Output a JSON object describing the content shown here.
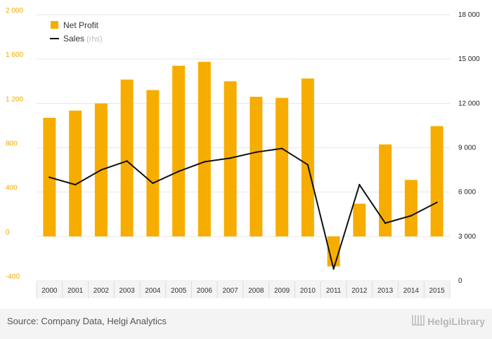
{
  "chart_data": {
    "type": "bar",
    "categories": [
      "2000",
      "2001",
      "2002",
      "2003",
      "2004",
      "2005",
      "2006",
      "2007",
      "2008",
      "2009",
      "2010",
      "2011",
      "2012",
      "2013",
      "2014",
      "2015"
    ],
    "series": [
      {
        "name": "Net Profit",
        "type": "bar",
        "axis": "left",
        "color": "#f7ad00",
        "values": [
          1070,
          1135,
          1200,
          1415,
          1320,
          1540,
          1575,
          1400,
          1260,
          1250,
          1425,
          -270,
          295,
          830,
          510,
          995
        ]
      },
      {
        "name": "Sales",
        "type": "line",
        "axis": "right",
        "color": "#111111",
        "values": [
          7000,
          6500,
          7500,
          8100,
          6600,
          7400,
          8050,
          8300,
          8700,
          8950,
          7850,
          800,
          6500,
          3900,
          4400,
          5300
        ]
      }
    ],
    "legend": {
      "items": [
        {
          "label": "Net Profit",
          "note": ""
        },
        {
          "label": "Sales",
          "note": "(rhs)"
        }
      ],
      "position": "top-left"
    },
    "y_left": {
      "min": -400,
      "max": 2000,
      "ticks": [
        -400,
        0,
        400,
        800,
        1200,
        1600,
        2000
      ],
      "tick_labels": [
        "-400",
        "0",
        "400",
        "800",
        "1 200",
        "1 600",
        "2 000"
      ]
    },
    "y_right": {
      "min": 0,
      "max": 18000,
      "ticks": [
        0,
        3000,
        6000,
        9000,
        12000,
        15000,
        18000
      ],
      "tick_labels": [
        "0",
        "3 000",
        "6 000",
        "9 000",
        "12 000",
        "15 000",
        "18 000"
      ]
    },
    "grid": "horizontal",
    "colors": {
      "bar": "#f7ad00",
      "line": "#111111",
      "grid": "#e6e6e6",
      "left_axis_text": "#f0a800"
    }
  },
  "footer": {
    "source": "Source: Company Data, Helgi Analytics",
    "brand": "HelgiLibrary"
  }
}
